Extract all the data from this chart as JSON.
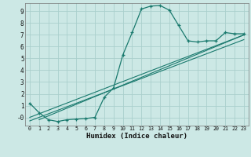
{
  "xlabel": "Humidex (Indice chaleur)",
  "bg_color": "#cce8e5",
  "grid_color": "#aacfcc",
  "line_color": "#1a7a6e",
  "xlim": [
    -0.5,
    23.5
  ],
  "ylim": [
    -0.7,
    9.7
  ],
  "yticks": [
    0,
    1,
    2,
    3,
    4,
    5,
    6,
    7,
    8,
    9
  ],
  "xticks": [
    0,
    1,
    2,
    3,
    4,
    5,
    6,
    7,
    8,
    9,
    10,
    11,
    12,
    13,
    14,
    15,
    16,
    17,
    18,
    19,
    20,
    21,
    22,
    23
  ],
  "curve1_x": [
    0,
    1,
    2,
    3,
    4,
    5,
    6,
    7,
    8,
    9,
    10,
    11,
    12,
    13,
    14,
    15,
    16,
    17,
    18,
    19,
    20,
    21,
    22,
    23
  ],
  "curve1_y": [
    1.2,
    0.4,
    -0.2,
    -0.35,
    -0.2,
    -0.15,
    -0.1,
    0.0,
    1.7,
    2.5,
    5.3,
    7.2,
    9.2,
    9.45,
    9.5,
    9.1,
    7.8,
    6.5,
    6.4,
    6.5,
    6.5,
    7.2,
    7.1,
    7.1
  ],
  "line2_x": [
    0,
    23
  ],
  "line2_y": [
    0.0,
    7.0
  ],
  "line3_x": [
    0,
    23
  ],
  "line3_y": [
    -0.3,
    6.6
  ],
  "line4_x": [
    1,
    23
  ],
  "line4_y": [
    -0.2,
    7.0
  ]
}
